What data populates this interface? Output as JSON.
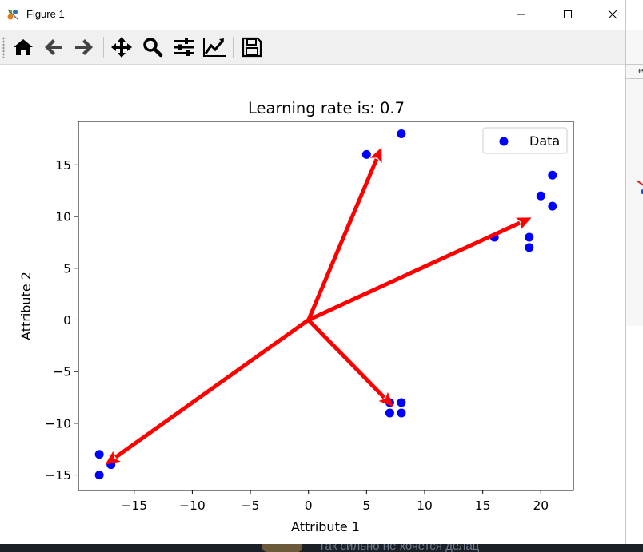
{
  "window": {
    "title": "Figure 1"
  },
  "toolbar": {
    "buttons": [
      {
        "name": "home-icon"
      },
      {
        "name": "back-arrow-icon"
      },
      {
        "name": "forward-arrow-icon"
      },
      {
        "name": "pan-move-icon"
      },
      {
        "name": "zoom-icon"
      },
      {
        "name": "configure-subplots-icon"
      },
      {
        "name": "edit-axes-icon"
      },
      {
        "name": "save-icon"
      }
    ]
  },
  "chart_data": {
    "type": "scatter",
    "title": "Learning rate is: 0.7",
    "xlabel": "Attribute 1",
    "ylabel": "Attribute 2",
    "xlim": [
      -19.8,
      22.8
    ],
    "ylim": [
      -16.5,
      19.2
    ],
    "xticks": [
      -15,
      -10,
      -5,
      0,
      5,
      10,
      15,
      20
    ],
    "yticks": [
      -15,
      -10,
      -5,
      0,
      5,
      10,
      15
    ],
    "xtick_labels": [
      "−15",
      "−10",
      "−5",
      "0",
      "5",
      "10",
      "15",
      "20"
    ],
    "ytick_labels": [
      "−15",
      "−10",
      "−5",
      "0",
      "5",
      "10",
      "15"
    ],
    "legend": {
      "position": "top-right",
      "entries": [
        "Data"
      ]
    },
    "grid": false,
    "series": [
      {
        "name": "Data",
        "color": "#0000ff",
        "points": [
          {
            "x": 5,
            "y": 16
          },
          {
            "x": 8,
            "y": 18
          },
          {
            "x": 16,
            "y": 8
          },
          {
            "x": 19,
            "y": 8
          },
          {
            "x": 19,
            "y": 7
          },
          {
            "x": 20,
            "y": 12
          },
          {
            "x": 21,
            "y": 14
          },
          {
            "x": 21,
            "y": 11
          },
          {
            "x": 7,
            "y": -8
          },
          {
            "x": 8,
            "y": -8
          },
          {
            "x": 7,
            "y": -9
          },
          {
            "x": 8,
            "y": -9
          },
          {
            "x": -18,
            "y": -13
          },
          {
            "x": -17,
            "y": -14
          },
          {
            "x": -18,
            "y": -15
          }
        ]
      }
    ],
    "arrows": {
      "color": "#ff0000",
      "origin": {
        "x": 0,
        "y": 0
      },
      "vectors": [
        {
          "x": 6.3,
          "y": 16.7
        },
        {
          "x": 19.2,
          "y": 9.9
        },
        {
          "x": 7.3,
          "y": -8.4
        },
        {
          "x": -17.5,
          "y": -14.0
        }
      ]
    }
  }
}
